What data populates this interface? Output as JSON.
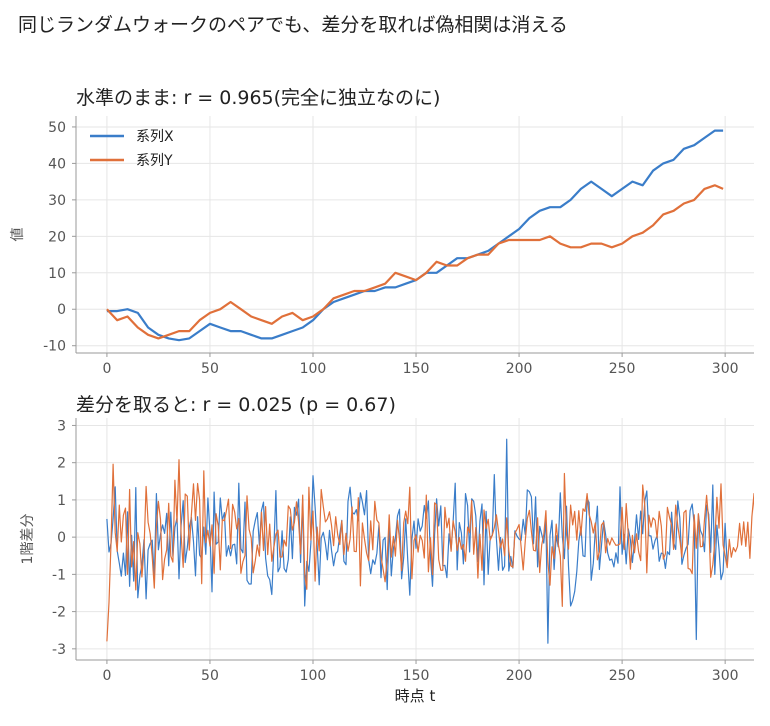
{
  "suptitle": "同じランダムウォークのペアでも、差分を取れば偽相関は消える",
  "chart_data": [
    {
      "type": "line",
      "title": "水準のまま: r = 0.965(完全に独立なのに)",
      "xlabel": "",
      "ylabel": "値",
      "xlim": [
        -15,
        314
      ],
      "ylim": [
        -12,
        53
      ],
      "xticks": [
        0,
        50,
        100,
        150,
        200,
        250,
        300
      ],
      "yticks": [
        -10,
        0,
        10,
        20,
        30,
        40,
        50
      ],
      "ytick_labels": [
        "-10",
        "0",
        "10",
        "20",
        "30",
        "40",
        "50"
      ],
      "grid": true,
      "legend": "top-left",
      "series": [
        {
          "name": "系列X",
          "color": "#3a7dc9",
          "x": [
            0,
            5,
            10,
            15,
            20,
            25,
            30,
            35,
            40,
            45,
            50,
            55,
            60,
            65,
            70,
            75,
            80,
            85,
            90,
            95,
            100,
            105,
            110,
            115,
            120,
            125,
            130,
            135,
            140,
            145,
            150,
            155,
            160,
            165,
            170,
            175,
            180,
            185,
            190,
            195,
            200,
            205,
            210,
            215,
            220,
            225,
            230,
            235,
            240,
            245,
            250,
            255,
            260,
            265,
            270,
            275,
            280,
            285,
            290,
            295,
            299
          ],
          "y": [
            -0.5,
            -0.5,
            0,
            -1,
            -5,
            -7,
            -8,
            -8.5,
            -8,
            -6,
            -4,
            -5,
            -6,
            -6,
            -7,
            -8,
            -8,
            -7,
            -6,
            -5,
            -3,
            0,
            2,
            3,
            4,
            5,
            5,
            6,
            6,
            7,
            8,
            10,
            10,
            12,
            14,
            14,
            15,
            16,
            18,
            20,
            22,
            25,
            27,
            28,
            28,
            30,
            33,
            35,
            33,
            31,
            33,
            35,
            34,
            38,
            40,
            41,
            44,
            45,
            47,
            49,
            49
          ]
        },
        {
          "name": "系列Y",
          "color": "#e0703a",
          "x": [
            0,
            5,
            10,
            15,
            20,
            25,
            30,
            35,
            40,
            45,
            50,
            55,
            60,
            65,
            70,
            75,
            80,
            85,
            90,
            95,
            100,
            105,
            110,
            115,
            120,
            125,
            130,
            135,
            140,
            145,
            150,
            155,
            160,
            165,
            170,
            175,
            180,
            185,
            190,
            195,
            200,
            205,
            210,
            215,
            220,
            225,
            230,
            235,
            240,
            245,
            250,
            255,
            260,
            265,
            270,
            275,
            280,
            285,
            290,
            295,
            299
          ],
          "y": [
            0,
            -3,
            -2,
            -5,
            -7,
            -8,
            -7,
            -6,
            -6,
            -3,
            -1,
            0,
            2,
            0,
            -2,
            -3,
            -4,
            -2,
            -1,
            -3,
            -2,
            0,
            3,
            4,
            5,
            5,
            6,
            7,
            10,
            9,
            8,
            10,
            13,
            12,
            12,
            14,
            15,
            15,
            18,
            19,
            19,
            19,
            19,
            20,
            18,
            17,
            17,
            18,
            18,
            17,
            18,
            20,
            21,
            23,
            26,
            27,
            29,
            30,
            33,
            34,
            33
          ]
        }
      ]
    },
    {
      "type": "line",
      "title": "差分を取ると: r = 0.025 (p = 0.67)",
      "xlabel": "時点 t",
      "ylabel": "1階差分",
      "xlim": [
        -15,
        314
      ],
      "ylim": [
        -3.3,
        3.2
      ],
      "xticks": [
        0,
        50,
        100,
        150,
        200,
        250,
        300
      ],
      "yticks": [
        -3,
        -2,
        -1,
        0,
        1,
        2,
        3
      ],
      "ytick_labels": [
        "-3",
        "-2",
        "-1",
        "0",
        "1",
        "2",
        "3"
      ],
      "grid": true,
      "legend": "none",
      "series": [
        {
          "color": "#3a7dc9",
          "y": [
            0.49,
            -0.4,
            -0.17,
            0.49,
            1.35,
            -0.37,
            -0.7,
            -1.05,
            -0.43,
            -1.03,
            0.68,
            -1.32,
            0.05,
            -1.18,
            1.33,
            -1.63,
            -1.03,
            -0.75,
            -0.07,
            -1.66,
            -0.34,
            -0.17,
            -0.08,
            -1.09,
            1.17,
            -0.34,
            0.08,
            0.33,
            0.1,
            0.64,
            -0.77,
            0.67,
            -0.52,
            0.26,
            0.52,
            -1.12,
            0.31,
            0.98,
            -0.68,
            -0.28,
            0.27,
            0.53,
            -0.12,
            -1.04,
            0.55,
            -0.48,
            -0.58,
            0.27,
            -0.46,
            1.05,
            0.09,
            -1.47,
            1.21,
            -0.19,
            -0.13,
            1.05,
            0.45,
            0.66,
            -0.51,
            -0.23,
            -0.5,
            -0.21,
            -0.19,
            -0.72,
            1.45,
            -0.31,
            -0.42,
            0.94,
            -1.16,
            -1.26,
            -1.26,
            0.16,
            0.45,
            0.66,
            -0.22,
            0.72,
            0.94,
            -0.56,
            -1.04,
            -1.14,
            -1.54,
            -0.34,
            1.25,
            -0.93,
            -0.81,
            0.17,
            -0.84,
            -0.94,
            -0.6,
            0.54,
            -0.58,
            0.8,
            0.59,
            1.02,
            -0.68,
            1.01,
            -1.85,
            -0.65,
            -0.92,
            -0.15,
            1.65,
            0.81,
            -0.19,
            -1.28,
            -0.02,
            0.13,
            -0.17,
            -0.61,
            0.18,
            -0.35,
            -0.77,
            -0.44,
            -0.38,
            0.07,
            0.45,
            -0.65,
            -0.74,
            0.96,
            1.34,
            0.67,
            0.62,
            0.74,
            0.44,
            1.19,
            0.94,
            0.6,
            1.25,
            -0.6,
            -0.98,
            -0.61,
            -0.73,
            -0.43,
            0.32,
            -1.09,
            -0.08,
            -0.01,
            -1.41,
            0.35,
            -1.04,
            -0.3,
            -0.02,
            0.57,
            0.75,
            -1.12,
            -0.55,
            0.49,
            -0.64,
            -1.56,
            -0.05,
            0.43,
            -0.3,
            0.49,
            0.16,
            0.3,
            0.85,
            0.51,
            0.97,
            -0.55,
            -1.32,
            0.07,
            1.03,
            0.3,
            0.84,
            -0.77,
            -0.76,
            -1.09,
            0.09,
            -0.34,
            0.4,
            1.45,
            -0.88,
            0.39,
            0.11,
            -0.72,
            1.17,
            0.85,
            -0.4,
            1.03,
            0.96,
            0.57,
            -0.66,
            0.43,
            0.89,
            -1.28,
            0.69,
            -1.0,
            -0.01,
            0.05,
            1.68,
            -0.04,
            -0.89,
            -0.01,
            -0.89,
            -0.78,
            2.63,
            -0.91,
            -0.52,
            -0.83,
            0.17,
            0.03,
            -0.05,
            -0.09,
            0.48,
            0.07,
            1.27,
            1.22,
            1.08,
            -0.18,
            1.08,
            -0.8,
            0.29,
            0.08,
            -0.16,
            0.48,
            -2.85,
            0.04,
            0.45,
            -0.87,
            0.04,
            -0.26,
            1.19,
            0.03,
            -0.58,
            0.83,
            -0.78,
            -1.85,
            -1.7,
            -1.46,
            -0.92,
            -0.11,
            0.27,
            -0.5,
            -0.52,
            1.04,
            0.93,
            -1.16,
            -0.7,
            0.19,
            0.83,
            -0.87,
            -0.22,
            0.44,
            0.07,
            -0.43,
            -0.62,
            -0.59,
            -0.8,
            -0.42,
            -0.7,
            1.35,
            -0.46,
            0.07,
            -0.72,
            0.22,
            -0.07,
            -0.68,
            -0.11,
            0.6,
            -0.06,
            0.7,
            0.09,
            0.97,
            1.24,
            0.04,
            0.03,
            -0.32,
            -0.09,
            0.03,
            -0.65,
            -0.43,
            -0.45,
            -0.84,
            -0.39,
            -0.47,
            0.67,
            -0.14,
            -0.33,
            0.97,
            0.52,
            -0.73,
            -0.49,
            -0.3,
            -0.19,
            0.71,
            0.89,
            0.35,
            -2.75,
            0.61,
            0.18,
            0.05,
            -0.39,
            0.86,
            0.61,
            -0.41,
            1.4,
            -1.0,
            0.32,
            -0.32,
            -1.14,
            -0.93,
            0.37,
            -0.72
          ]
        },
        {
          "color": "#e0703a",
          "y": [
            -2.8,
            -1.75,
            -0.17,
            1.96,
            0.12,
            -0.38,
            0.86,
            -0.13,
            0.59,
            0.78,
            -1.0,
            1.28,
            -0.8,
            -0.12,
            -1.42,
            0.12,
            -0.18,
            -1.07,
            -0.33,
            1.36,
            0.4,
            0.09,
            -0.52,
            -1.37,
            0.28,
            0.96,
            0.48,
            -1.14,
            -0.59,
            -0.34,
            0.91,
            -0.51,
            -0.67,
            1.53,
            0.4,
            2.08,
            0.07,
            -0.81,
            1.16,
            1.1,
            -0.35,
            0.61,
            1.43,
            0.45,
            1.44,
            1.0,
            -1.25,
            1.78,
            -0.15,
            0.18,
            -0.24,
            0.33,
            -0.97,
            0.63,
            0.31,
            -0.88,
            0.47,
            0.44,
            0.71,
            1.02,
            -0.31,
            0.88,
            0.67,
            0.22,
            0.5,
            -0.97,
            -0.66,
            -0.49,
            1.11,
            0.21,
            -0.02,
            -0.96,
            -0.63,
            -0.21,
            -0.51,
            0.67,
            -0.36,
            0.82,
            -0.47,
            0.35,
            -0.65,
            -0.29,
            0.08,
            0.19,
            -0.54,
            -0.53,
            -0.08,
            -0.24,
            0.84,
            0.75,
            0.19,
            0.39,
            0.95,
            0.4,
            -0.45,
            1.13,
            -0.99,
            -1.4,
            1.34,
            -0.08,
            0.7,
            -1.18,
            0.27,
            -0.37,
            1.28,
            0.82,
            0.41,
            0.49,
            0.68,
            0.32,
            -0.23,
            0.55,
            0.06,
            -0.2,
            0.44,
            -0.47,
            0.1,
            -0.38,
            -0.05,
            0.81,
            -0.38,
            -0.39,
            1.06,
            -1.31,
            0.38,
            -0.05,
            -0.43,
            -0.63,
            0.44,
            -0.34,
            0.96,
            0.46,
            0.38,
            -0.52,
            -0.86,
            -1.2,
            -0.56,
            0.6,
            -0.54,
            0.02,
            -0.51,
            0.45,
            -0.07,
            -0.9,
            0.38,
            0.7,
            0.36,
            1.34,
            -1.12,
            -0.09,
            0.06,
            -0.4,
            0.05,
            -0.09,
            -0.56,
            1.13,
            -0.93,
            -0.02,
            -1.01,
            0.92,
            0.87,
            -0.6,
            -0.89,
            -0.89,
            0.8,
            0.25,
            0.51,
            -0.38,
            0.44,
            0.14,
            -0.36,
            -0.01,
            -0.32,
            -0.2,
            -0.65,
            0.27,
            0.12,
            0.99,
            -0.46,
            0.26,
            -1.1,
            0.08,
            -0.89,
            0.73,
            0.23,
            0.48,
            -0.08,
            0.05,
            0.25,
            0.6,
            0.16,
            -0.29,
            -0.05,
            -0.5,
            0.52,
            -0.36,
            -0.77,
            -0.81,
            0.11,
            0.21,
            0.34,
            -0.26,
            -0.88,
            -0.09,
            0.5,
            0.72,
            0.15,
            -0.35,
            -0.37,
            0.52,
            -0.95,
            -0.21,
            0.07,
            0.71,
            -0.68,
            -1.29,
            -0.26,
            -0.58,
            0.35,
            -0.17,
            -0.5,
            -1.86,
            1.71,
            0.08,
            -0.32,
            0.86,
            0.33,
            0.69,
            -0.08,
            0.71,
            0.05,
            0.76,
            0.69,
            1.17,
            0.61,
            0.42,
            0.11,
            0.38,
            -0.61,
            -0.39,
            0.33,
            0.4,
            -0.42,
            -0.04,
            -0.21,
            -0.02,
            -0.13,
            -0.22,
            -0.21,
            -0.18,
            0.8,
            -0.33,
            0.9,
            0.06,
            -0.86,
            0.05,
            -0.42,
            0.09,
            -0.39,
            -0.63,
            1.4,
            0.84,
            -0.96,
            0.59,
            0.27,
            0.52,
            0.45,
            -0.02,
            0.69,
            0.3,
            -0.59,
            -0.45,
            0.8,
            0.53,
            0.32,
            -0.33,
            0.86,
            0.3,
            -0.06,
            -0.54,
            0.66,
            0.72,
            -0.84,
            -0.86,
            -0.98,
            0.6,
            -0.3,
            0.63,
            -0.26,
            -0.25,
            0.47,
            1.12,
            0.43,
            -1.08,
            -0.74,
            -0.13,
            1.07,
            0.24,
            1.43,
            -0.21,
            -0.49,
            -0.82,
            -0.06,
            -0.54,
            -0.28,
            -0.39,
            -0.25,
            0.37,
            -0.21,
            0.41,
            -0.25,
            0.4,
            -0.57,
            0.55,
            1.17,
            -0.76,
            0.18,
            -0.48,
            -1.01,
            -0.89,
            -1.58,
            -0.07,
            -0.32,
            -1.16,
            -0.44,
            -1.46,
            -0.73,
            -0.27,
            -0.5,
            -0.87,
            -1.0,
            -0.45,
            -0.22,
            -1.42,
            0.06,
            -1.1,
            -1.33,
            -0.19,
            -0.28,
            -0.24
          ]
        }
      ]
    }
  ]
}
